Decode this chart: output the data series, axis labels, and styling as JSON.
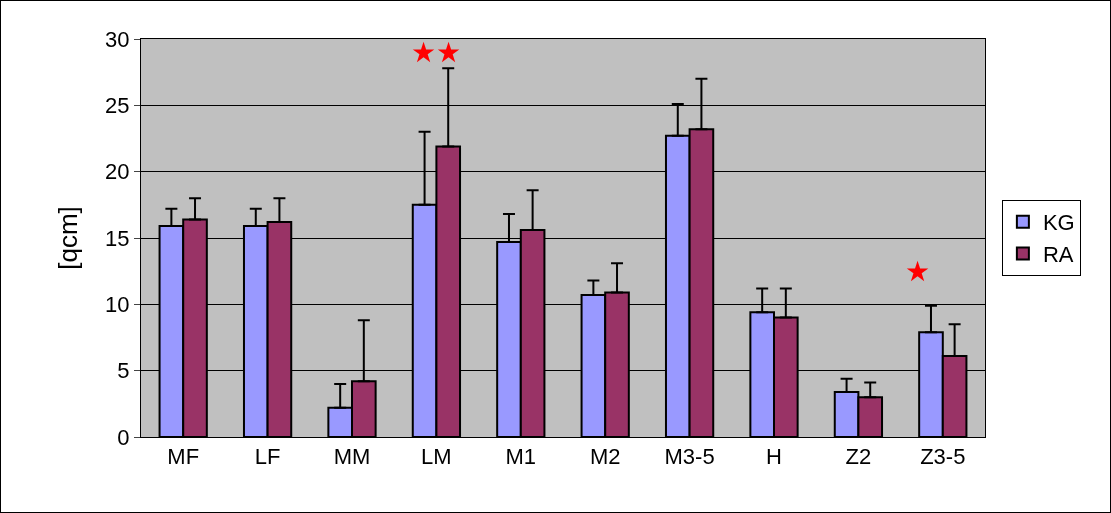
{
  "chart_data": {
    "type": "bar",
    "ylabel": "[qcm]",
    "categories": [
      "MF",
      "LF",
      "MM",
      "LM",
      "M1",
      "M2",
      "M3-5",
      "H",
      "Z2",
      "Z3-5"
    ],
    "series": [
      {
        "name": "KG",
        "color": "#9999ff",
        "values": [
          15.9,
          15.9,
          2.2,
          17.5,
          14.7,
          10.7,
          22.7,
          9.4,
          3.4,
          7.9
        ],
        "errors": [
          [
            15.9,
            17.2
          ],
          [
            15.9,
            17.2
          ],
          [
            2.2,
            4.0
          ],
          [
            17.5,
            23.0
          ],
          [
            14.7,
            16.8
          ],
          [
            10.7,
            11.8
          ],
          [
            22.7,
            25.1
          ],
          [
            9.4,
            11.2
          ],
          [
            3.4,
            4.4
          ],
          [
            7.9,
            9.9
          ]
        ]
      },
      {
        "name": "RA",
        "color": "#993366",
        "values": [
          16.4,
          16.2,
          4.2,
          21.9,
          15.6,
          10.9,
          23.2,
          9.0,
          3.0,
          6.1
        ],
        "errors": [
          [
            16.4,
            18.0
          ],
          [
            16.2,
            18.0
          ],
          [
            4.2,
            8.8
          ],
          [
            21.9,
            27.8
          ],
          [
            15.6,
            18.6
          ],
          [
            10.9,
            13.1
          ],
          [
            23.2,
            27.0
          ],
          [
            9.0,
            11.2
          ],
          [
            3.0,
            4.1
          ],
          [
            6.1,
            8.5
          ]
        ]
      }
    ],
    "ylim": [
      0,
      30
    ],
    "yticks": [
      0,
      5,
      10,
      15,
      20,
      25,
      30
    ],
    "grid": "y",
    "legend": "right",
    "annotations": [
      "★★",
      "★"
    ]
  }
}
